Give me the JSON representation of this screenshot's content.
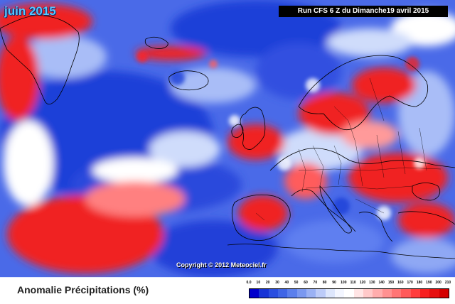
{
  "header": {
    "month_title": "juin 2015",
    "run_info": "Run CFS 6 Z du Dimanche19 avril 2015",
    "copyright": "Copyright © 2012 Meteociel.fr"
  },
  "legend": {
    "title": "Anomalie Précipitations (%)",
    "ticks": [
      "0.0",
      "10",
      "20",
      "30",
      "40",
      "50",
      "60",
      "70",
      "80",
      "90",
      "100",
      "110",
      "120",
      "130",
      "140",
      "150",
      "160",
      "170",
      "180",
      "190",
      "200",
      "210"
    ],
    "colors": [
      "#0000cc",
      "#1633d6",
      "#2a4ee0",
      "#3f65e6",
      "#5b7fec",
      "#7a98f0",
      "#9ab1f4",
      "#bccbf8",
      "#dde6fc",
      "#f3f6ff",
      "#ffffff",
      "#ffe5e5",
      "#ffc9c9",
      "#ffadad",
      "#ff9191",
      "#ff7575",
      "#ff5959",
      "#ff3d3d",
      "#f72020",
      "#e60f0f",
      "#d40000"
    ]
  },
  "map_colors": {
    "strong_blue": "#1f3fd8",
    "mid_blue": "#5f7ff0",
    "light_blue": "#a9bdf7",
    "white": "#ffffff",
    "light_red": "#ff9a9a",
    "strong_red": "#f02020"
  }
}
